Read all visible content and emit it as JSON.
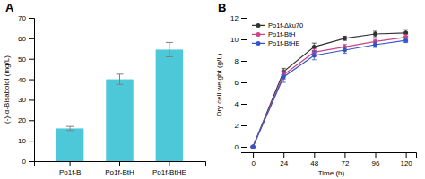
{
  "chart_data": [
    {
      "type": "bar",
      "title": "A",
      "categories": [
        "Po1f-B",
        "Po1f-BtH",
        "Po1f-BtHE"
      ],
      "values": [
        16,
        40,
        54.5
      ],
      "errors": [
        1.0,
        2.5,
        3.5
      ],
      "color": "#4DC8D8",
      "ylabel": "(-)-α-Bisabolol (mg/L)",
      "ylim": [
        0,
        70
      ],
      "yticks": [
        0,
        10,
        20,
        30,
        40,
        50,
        60,
        70
      ],
      "grid": false
    },
    {
      "type": "line",
      "title": "B",
      "x": [
        0,
        24,
        48,
        72,
        96,
        120
      ],
      "series": [
        {
          "name": "Po1f-Δku70",
          "color": "#333333",
          "marker": "o",
          "values": [
            0,
            7.0,
            9.3,
            10.1,
            10.5,
            10.6
          ],
          "errors": [
            0.05,
            0.3,
            0.35,
            0.2,
            0.25,
            0.3
          ]
        },
        {
          "name": "Po1f-BtH",
          "color": "#CC4488",
          "marker": "o",
          "values": [
            0,
            6.7,
            8.8,
            9.3,
            9.8,
            10.2
          ],
          "errors": [
            0.05,
            0.4,
            0.3,
            0.25,
            0.2,
            0.25
          ]
        },
        {
          "name": "Po1f-BtHE",
          "color": "#3355CC",
          "marker": "o",
          "values": [
            0,
            6.5,
            8.5,
            9.0,
            9.5,
            9.9
          ],
          "errors": [
            0.05,
            0.5,
            0.4,
            0.3,
            0.25,
            0.2
          ]
        }
      ],
      "xlabel": "Time (h)",
      "ylabel": "Dry cell weight (g/L)",
      "xlim": [
        -5,
        128
      ],
      "ylim": [
        -0.5,
        12
      ],
      "xticks": [
        0,
        24,
        48,
        72,
        96,
        120
      ],
      "yticks": [
        0,
        2,
        4,
        6,
        8,
        10,
        12
      ],
      "legend": "upper left",
      "grid": false
    }
  ]
}
